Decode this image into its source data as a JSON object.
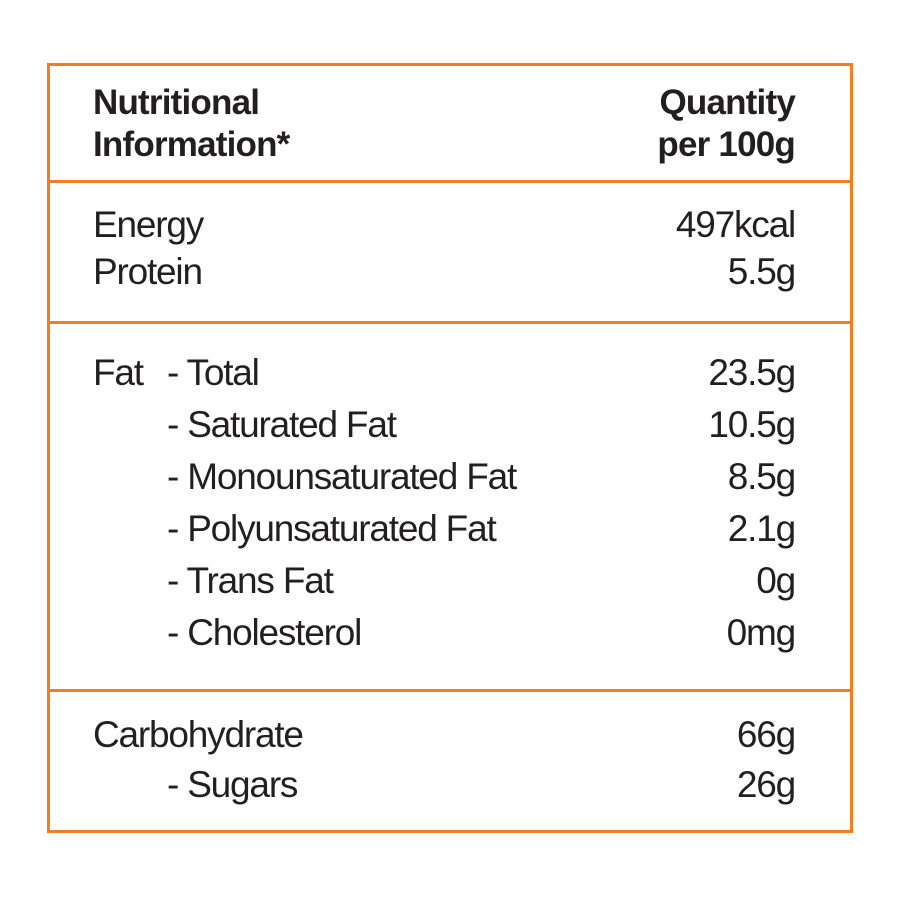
{
  "header": {
    "title": [
      "Nutritional",
      "Information*"
    ],
    "quantity": [
      "Quantity",
      "per 100g"
    ]
  },
  "sections": [
    {
      "rows": [
        {
          "label": "Energy",
          "value": "497kcal"
        },
        {
          "label": "Protein",
          "value": "5.5g"
        }
      ]
    },
    {
      "rows": [
        {
          "label": "Fat",
          "item": "- Total",
          "value": "23.5g"
        },
        {
          "item": "- Saturated Fat",
          "value": "10.5g"
        },
        {
          "item": "- Monounsaturated Fat",
          "value": "8.5g"
        },
        {
          "item": "- Polyunsaturated Fat",
          "value": "2.1g"
        },
        {
          "item": "- Trans Fat",
          "value": "0g"
        },
        {
          "item": "- Cholesterol",
          "value": "0mg"
        }
      ]
    },
    {
      "rows": [
        {
          "label": "Carbohydrate",
          "value": "66g"
        },
        {
          "item": "- Sugars",
          "value": "26g"
        }
      ]
    }
  ]
}
